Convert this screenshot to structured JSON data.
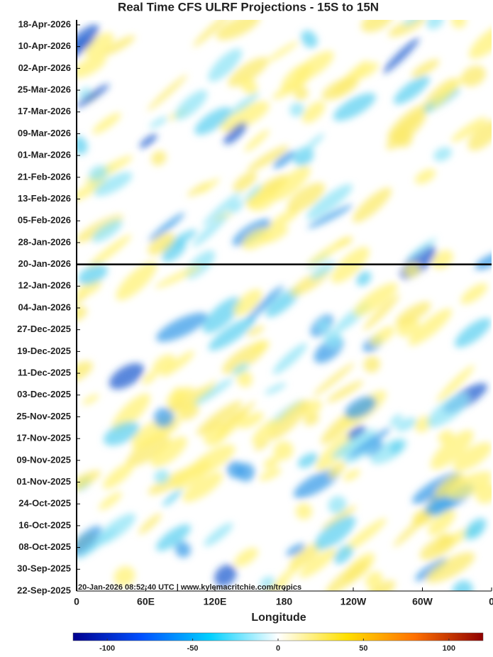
{
  "chart_data": {
    "type": "heatmap",
    "title": "Real Time CFS ULRF Projections - 15S to 15N",
    "xlabel": "Longitude",
    "annotation": "20-Jan-2026 08:52:40 UTC | www.kylemacritchie.com/tropics",
    "xlim": [
      0,
      360
    ],
    "xticks": [
      0,
      {
        "value": 60,
        "label": "60E"
      },
      {
        "value": 120,
        "label": "120E"
      },
      180,
      {
        "value": 240,
        "label": "120W"
      },
      {
        "value": 300,
        "label": "60W"
      },
      {
        "value": 360,
        "label": "0"
      }
    ],
    "ylim": [
      "22-Sep-2025",
      "18-Apr-2026"
    ],
    "yticks": [
      "18-Apr-2026",
      "10-Apr-2026",
      "02-Apr-2026",
      "25-Mar-2026",
      "17-Mar-2026",
      "09-Mar-2026",
      "01-Mar-2026",
      "21-Feb-2026",
      "13-Feb-2026",
      "05-Feb-2026",
      "28-Jan-2026",
      "20-Jan-2026",
      "12-Jan-2026",
      "04-Jan-2026",
      "27-Dec-2025",
      "19-Dec-2025",
      "11-Dec-2025",
      "03-Dec-2025",
      "25-Nov-2025",
      "17-Nov-2025",
      "09-Nov-2025",
      "01-Nov-2025",
      "24-Oct-2025",
      "16-Oct-2025",
      "08-Oct-2025",
      "30-Sep-2025",
      "22-Sep-2025"
    ],
    "hline": "20-Jan-2026",
    "clim": [
      -120,
      120
    ],
    "cticks": [
      -100,
      -50,
      0,
      50,
      100
    ],
    "colormap": [
      "#00008f",
      "#0050ff",
      "#00d0ff",
      "#ffffff",
      "#ffe000",
      "#ff7000",
      "#8f0000"
    ]
  }
}
